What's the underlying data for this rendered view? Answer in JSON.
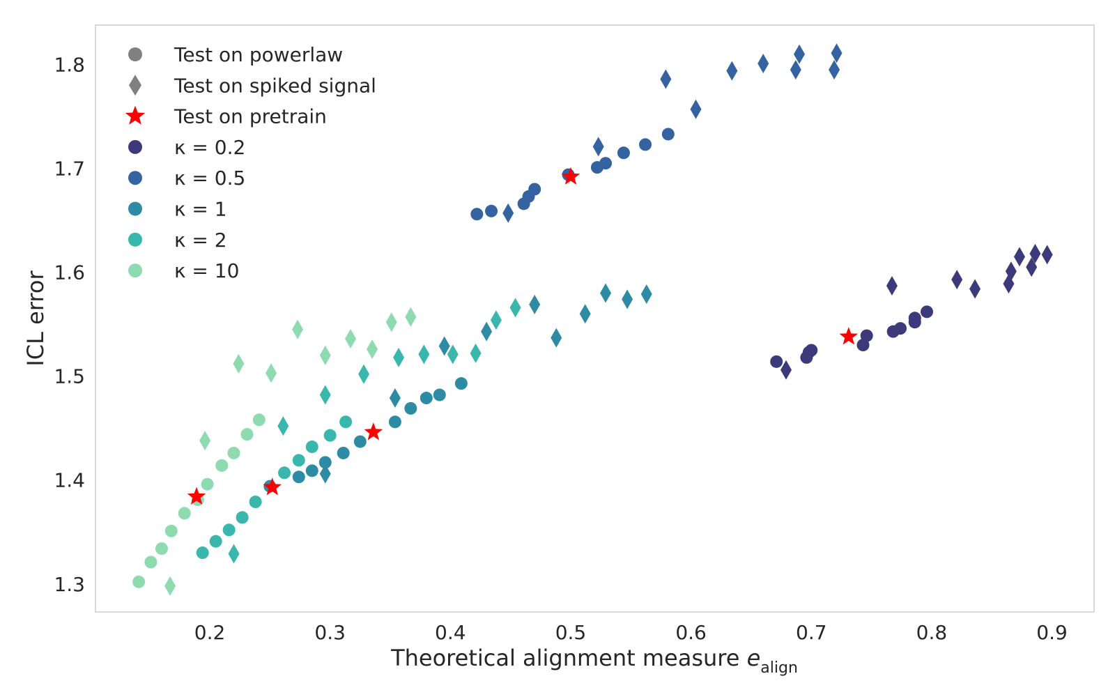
{
  "chart_data": {
    "type": "scatter",
    "xlabel": "Theoretical alignment measure",
    "xlabel_symbol": "e",
    "xlabel_subscript": "align",
    "ylabel": "ICL error",
    "xlim": [
      0.105,
      0.935
    ],
    "ylim": [
      1.273,
      1.838
    ],
    "x_ticks": [
      0.2,
      0.3,
      0.4,
      0.5,
      0.6,
      0.7,
      0.8,
      0.9
    ],
    "y_ticks": [
      1.3,
      1.4,
      1.5,
      1.6,
      1.7,
      1.8
    ],
    "grid": false,
    "legend_position": "top-left",
    "marker_legend": [
      {
        "marker": "circle",
        "label": "Test on powerlaw",
        "color": "#808080"
      },
      {
        "marker": "diamond",
        "label": "Test on spiked signal",
        "color": "#808080"
      },
      {
        "marker": "star",
        "label": "Test on pretrain",
        "color": "#ff0000"
      }
    ],
    "series": [
      {
        "name": "κ =  0.2",
        "color": "#3c3a7a",
        "powerlaw": [
          [
            0.671,
            1.514
          ],
          [
            0.696,
            1.518
          ],
          [
            0.698,
            1.523
          ],
          [
            0.7,
            1.525
          ],
          [
            0.743,
            1.53
          ],
          [
            0.746,
            1.539
          ],
          [
            0.768,
            1.543
          ],
          [
            0.774,
            1.546
          ],
          [
            0.786,
            1.552
          ],
          [
            0.786,
            1.556
          ],
          [
            0.796,
            1.562
          ]
        ],
        "spiked": [
          [
            0.679,
            1.506
          ],
          [
            0.767,
            1.587
          ],
          [
            0.821,
            1.593
          ],
          [
            0.836,
            1.584
          ],
          [
            0.864,
            1.589
          ],
          [
            0.866,
            1.601
          ],
          [
            0.873,
            1.615
          ],
          [
            0.883,
            1.605
          ],
          [
            0.886,
            1.618
          ],
          [
            0.896,
            1.617
          ]
        ],
        "pretrain": [
          [
            0.731,
            1.538
          ]
        ]
      },
      {
        "name": "κ =  0.5",
        "color": "#3562a0",
        "powerlaw": [
          [
            0.422,
            1.656
          ],
          [
            0.434,
            1.659
          ],
          [
            0.461,
            1.666
          ],
          [
            0.465,
            1.673
          ],
          [
            0.47,
            1.68
          ],
          [
            0.498,
            1.694
          ],
          [
            0.522,
            1.701
          ],
          [
            0.529,
            1.705
          ],
          [
            0.544,
            1.715
          ],
          [
            0.562,
            1.723
          ],
          [
            0.581,
            1.733
          ]
        ],
        "spiked": [
          [
            0.448,
            1.657
          ],
          [
            0.523,
            1.721
          ],
          [
            0.579,
            1.786
          ],
          [
            0.604,
            1.757
          ],
          [
            0.634,
            1.794
          ],
          [
            0.66,
            1.801
          ],
          [
            0.687,
            1.795
          ],
          [
            0.69,
            1.81
          ],
          [
            0.719,
            1.795
          ],
          [
            0.721,
            1.811
          ]
        ],
        "pretrain": [
          [
            0.5,
            1.692
          ]
        ]
      },
      {
        "name": "κ =  1",
        "color": "#2d8ca3",
        "powerlaw": [
          [
            0.25,
            1.394
          ],
          [
            0.274,
            1.403
          ],
          [
            0.285,
            1.409
          ],
          [
            0.296,
            1.417
          ],
          [
            0.311,
            1.426
          ],
          [
            0.325,
            1.437
          ],
          [
            0.354,
            1.456
          ],
          [
            0.367,
            1.469
          ],
          [
            0.38,
            1.479
          ],
          [
            0.391,
            1.482
          ],
          [
            0.409,
            1.493
          ]
        ],
        "spiked": [
          [
            0.296,
            1.406
          ],
          [
            0.354,
            1.479
          ],
          [
            0.395,
            1.529
          ],
          [
            0.43,
            1.543
          ],
          [
            0.47,
            1.569
          ],
          [
            0.488,
            1.537
          ],
          [
            0.512,
            1.56
          ],
          [
            0.529,
            1.58
          ],
          [
            0.547,
            1.574
          ],
          [
            0.563,
            1.579
          ]
        ],
        "pretrain": [
          [
            0.336,
            1.446
          ]
        ]
      },
      {
        "name": "κ =  2",
        "color": "#3ab7ad",
        "powerlaw": [
          [
            0.194,
            1.33
          ],
          [
            0.205,
            1.341
          ],
          [
            0.216,
            1.352
          ],
          [
            0.227,
            1.364
          ],
          [
            0.238,
            1.379
          ],
          [
            0.262,
            1.407
          ],
          [
            0.274,
            1.419
          ],
          [
            0.285,
            1.432
          ],
          [
            0.3,
            1.443
          ],
          [
            0.313,
            1.456
          ]
        ],
        "spiked": [
          [
            0.22,
            1.329
          ],
          [
            0.261,
            1.452
          ],
          [
            0.296,
            1.482
          ],
          [
            0.328,
            1.502
          ],
          [
            0.357,
            1.518
          ],
          [
            0.378,
            1.521
          ],
          [
            0.402,
            1.521
          ],
          [
            0.421,
            1.522
          ],
          [
            0.438,
            1.554
          ],
          [
            0.454,
            1.566
          ]
        ],
        "pretrain": [
          [
            0.252,
            1.393
          ]
        ]
      },
      {
        "name": "κ =  10",
        "color": "#8edbb0",
        "powerlaw": [
          [
            0.141,
            1.302
          ],
          [
            0.151,
            1.321
          ],
          [
            0.16,
            1.334
          ],
          [
            0.168,
            1.351
          ],
          [
            0.179,
            1.368
          ],
          [
            0.19,
            1.381
          ],
          [
            0.198,
            1.396
          ],
          [
            0.21,
            1.414
          ],
          [
            0.22,
            1.426
          ],
          [
            0.231,
            1.444
          ],
          [
            0.241,
            1.458
          ]
        ],
        "spiked": [
          [
            0.167,
            1.298
          ],
          [
            0.196,
            1.438
          ],
          [
            0.224,
            1.512
          ],
          [
            0.251,
            1.503
          ],
          [
            0.273,
            1.545
          ],
          [
            0.296,
            1.52
          ],
          [
            0.317,
            1.536
          ],
          [
            0.335,
            1.526
          ],
          [
            0.351,
            1.552
          ],
          [
            0.367,
            1.557
          ]
        ],
        "pretrain": [
          [
            0.189,
            1.384
          ]
        ]
      }
    ]
  }
}
